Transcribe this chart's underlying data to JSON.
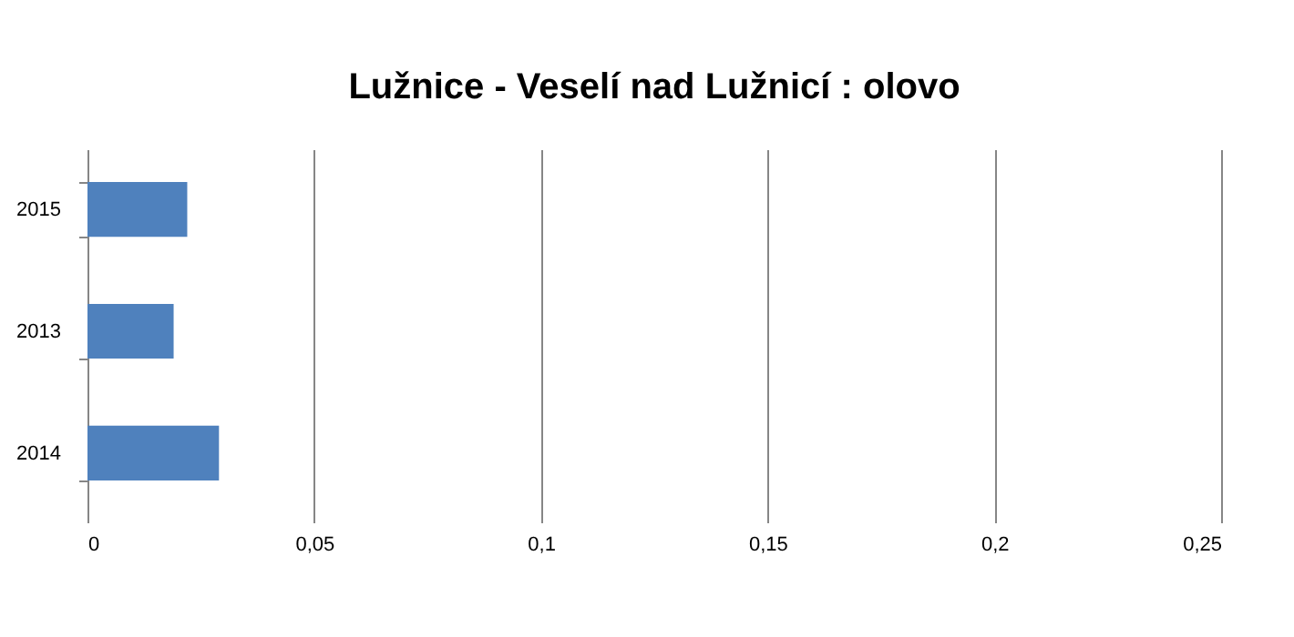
{
  "chart_data": {
    "type": "bar",
    "orientation": "horizontal",
    "title": "Lužnice - Veselí nad Lužnicí : olovo",
    "categories": [
      "2015",
      "2013",
      "2014"
    ],
    "values": [
      0.022,
      0.019,
      0.029
    ],
    "color": "#4f81bd",
    "xlim": [
      0,
      0.25
    ],
    "xticks": [
      0,
      {
        "value": 0.05,
        "label": "0,05"
      },
      {
        "value": 0.1,
        "label": "0,1"
      },
      {
        "value": 0.15,
        "label": "0,15"
      },
      {
        "value": 0.2,
        "label": "0,2"
      },
      {
        "value": 0.25,
        "label": "0,25"
      }
    ],
    "grid": "x"
  }
}
